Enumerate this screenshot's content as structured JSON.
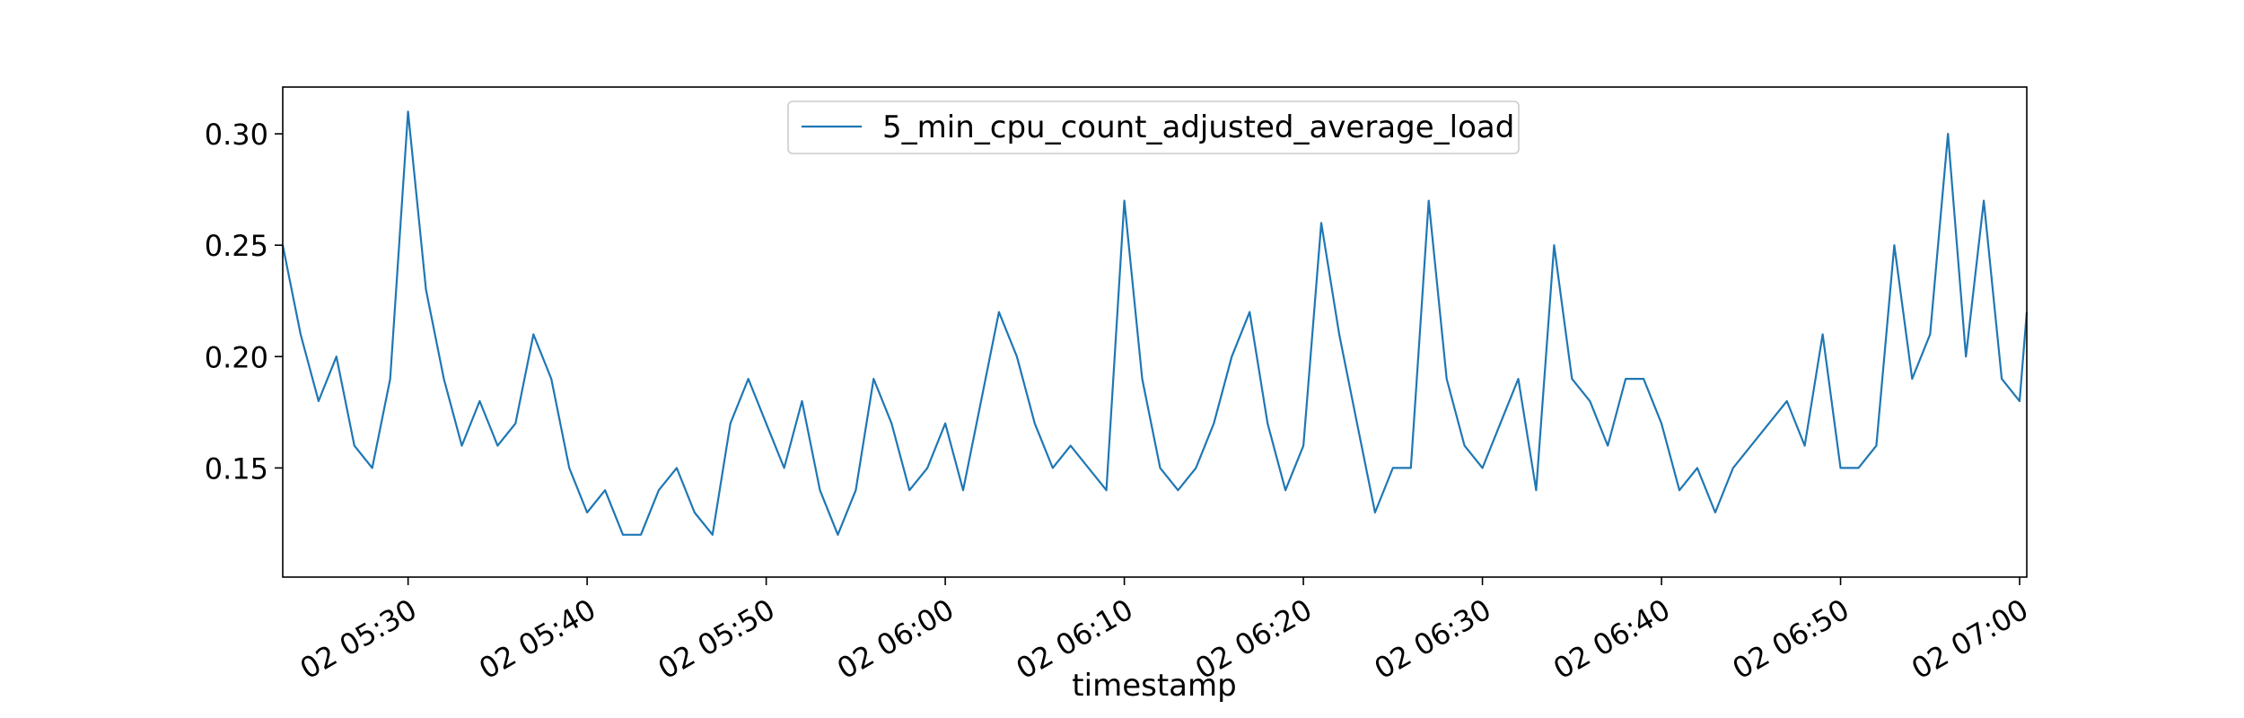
{
  "chart_data": {
    "type": "line",
    "title": "",
    "xlabel": "timestamp",
    "ylabel": "",
    "x_tick_labels": [
      "02 05:30",
      "02 05:40",
      "02 05:50",
      "02 06:00",
      "02 06:10",
      "02 06:20",
      "02 06:30",
      "02 06:40",
      "02 06:50",
      "02 07:00"
    ],
    "y_tick_labels": [
      "0.15",
      "0.20",
      "0.25",
      "0.30"
    ],
    "y_ticks": [
      0.15,
      0.2,
      0.25,
      0.3
    ],
    "xlim_minutes": [
      -7,
      90.4
    ],
    "ylim": [
      0.101,
      0.321
    ],
    "grid": false,
    "legend_position": "top-center",
    "series": [
      {
        "name": "5_min_cpu_count_adjusted_average_load",
        "color": "#1f77b4",
        "x_minutes": [
          -7,
          -6,
          -5,
          -4,
          -3,
          -2,
          -1,
          0,
          1,
          2,
          3,
          4,
          5,
          6,
          7,
          8,
          9,
          10,
          11,
          12,
          13,
          14,
          15,
          16,
          17,
          18,
          19,
          20,
          21,
          22,
          23,
          24,
          25,
          26,
          27,
          28,
          29,
          30,
          31,
          32,
          33,
          34,
          35,
          36,
          37,
          38,
          39,
          40,
          41,
          42,
          43,
          44,
          45,
          46,
          47,
          48,
          49,
          50,
          51,
          52,
          53,
          54,
          55,
          56,
          57,
          58,
          59,
          60,
          61,
          62,
          63,
          64,
          65,
          66,
          67,
          68,
          69,
          70,
          71,
          72,
          73,
          74,
          75,
          76,
          77,
          78,
          79,
          80,
          81,
          82,
          83,
          84,
          85,
          86,
          87,
          88,
          89,
          90,
          90.4
        ],
        "values": [
          0.25,
          0.21,
          0.18,
          0.2,
          0.16,
          0.15,
          0.19,
          0.31,
          0.23,
          0.19,
          0.16,
          0.18,
          0.16,
          0.17,
          0.21,
          0.19,
          0.15,
          0.13,
          0.14,
          0.12,
          0.12,
          0.14,
          0.15,
          0.13,
          0.12,
          0.17,
          0.19,
          0.17,
          0.15,
          0.18,
          0.14,
          0.12,
          0.14,
          0.19,
          0.17,
          0.14,
          0.15,
          0.17,
          0.14,
          0.18,
          0.22,
          0.2,
          0.17,
          0.15,
          0.16,
          0.15,
          0.14,
          0.27,
          0.19,
          0.15,
          0.14,
          0.15,
          0.17,
          0.2,
          0.22,
          0.17,
          0.14,
          0.16,
          0.26,
          0.21,
          0.17,
          0.13,
          0.15,
          0.15,
          0.27,
          0.19,
          0.16,
          0.15,
          0.17,
          0.19,
          0.14,
          0.25,
          0.19,
          0.18,
          0.16,
          0.19,
          0.19,
          0.17,
          0.14,
          0.15,
          0.13,
          0.15,
          0.16,
          0.17,
          0.18,
          0.16,
          0.21,
          0.15,
          0.15,
          0.16,
          0.25,
          0.19,
          0.21,
          0.3,
          0.2,
          0.27,
          0.19,
          0.18,
          0.22
        ]
      }
    ]
  }
}
